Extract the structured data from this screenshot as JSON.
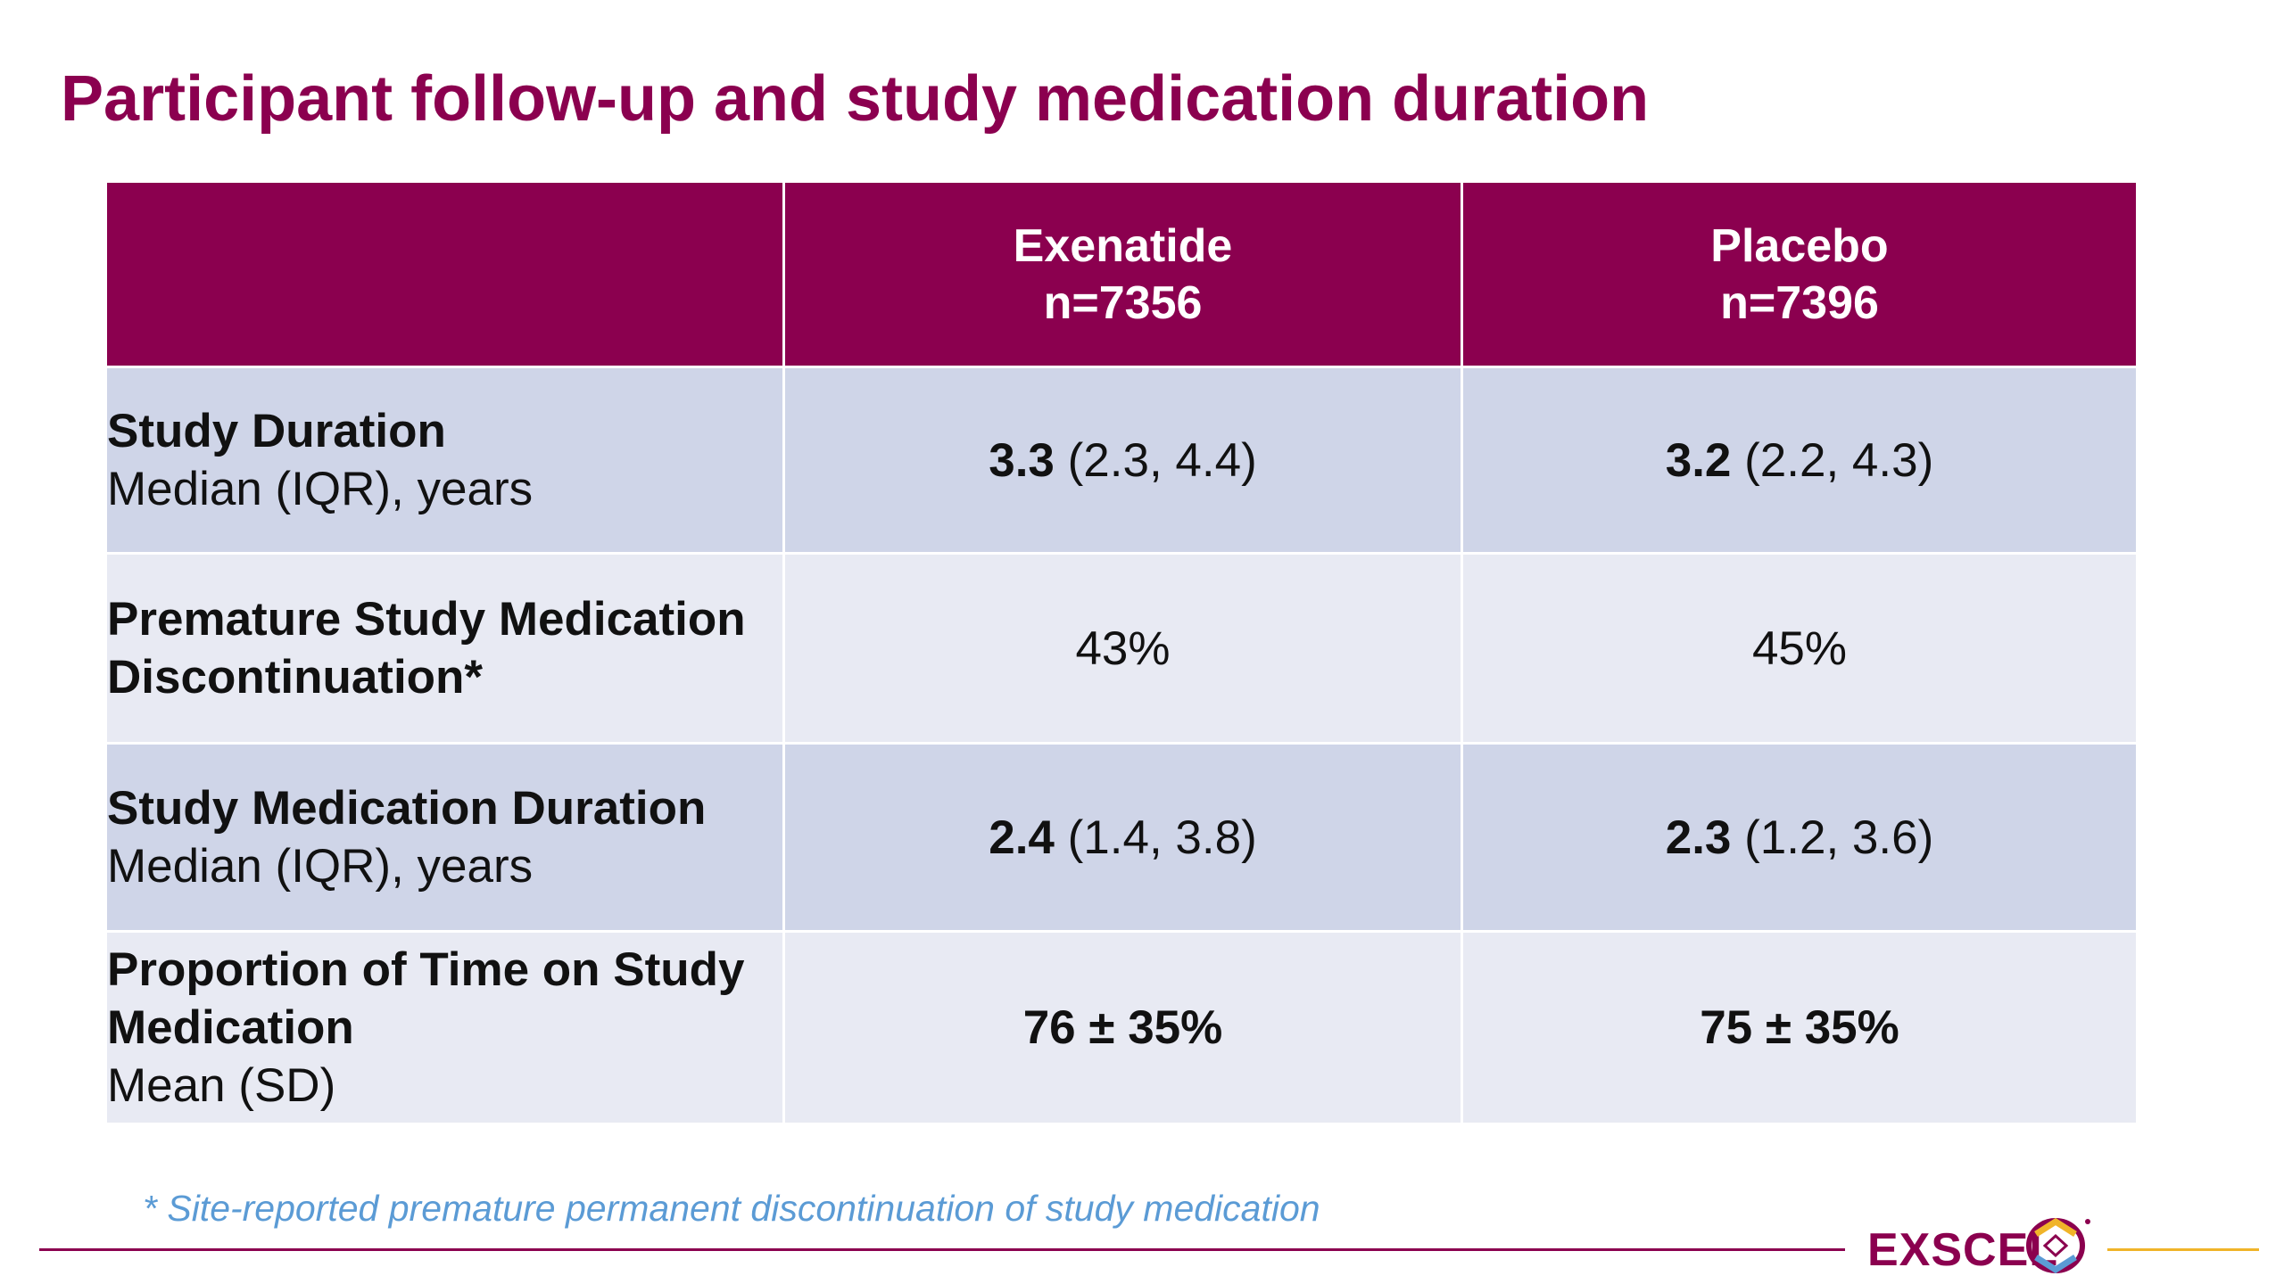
{
  "title": "Participant follow-up and study medication duration",
  "table": {
    "columns": [
      {
        "name": "Exenatide",
        "n": "n=7356"
      },
      {
        "name": "Placebo",
        "n": "n=7396"
      }
    ],
    "rows": [
      {
        "label_bold": "Study Duration",
        "label_sub": "Median (IQR), years",
        "exenatide": {
          "bold": "3.3",
          "rest": " (2.3, 4.4)"
        },
        "placebo": {
          "bold": "3.2",
          "rest": " (2.2, 4.3)"
        }
      },
      {
        "label_bold": "Premature Study Medication Discontinuation*",
        "exenatide": {
          "rest": "43%"
        },
        "placebo": {
          "rest": "45%"
        }
      },
      {
        "label_bold": "Study Medication Duration",
        "label_sub": "Median (IQR), years",
        "exenatide": {
          "bold": "2.4",
          "rest": " (1.4, 3.8)"
        },
        "placebo": {
          "bold": "2.3",
          "rest": " (1.2, 3.6)"
        }
      },
      {
        "label_bold": "Proportion of Time on Study Medication",
        "label_sub": "Mean (SD)",
        "exenatide": {
          "bold": "76 ± 35%"
        },
        "placebo": {
          "bold": "75 ± 35%"
        }
      }
    ]
  },
  "footnote": "* Site-reported premature permanent discontinuation of study medication",
  "logo": {
    "text": "EXSCEL"
  },
  "colors": {
    "brand": "#8b004f",
    "row_dark": "#cfd5e8",
    "row_light": "#e8eaf3",
    "footnote": "#5b9bd5",
    "accent_gold": "#f0b429"
  }
}
